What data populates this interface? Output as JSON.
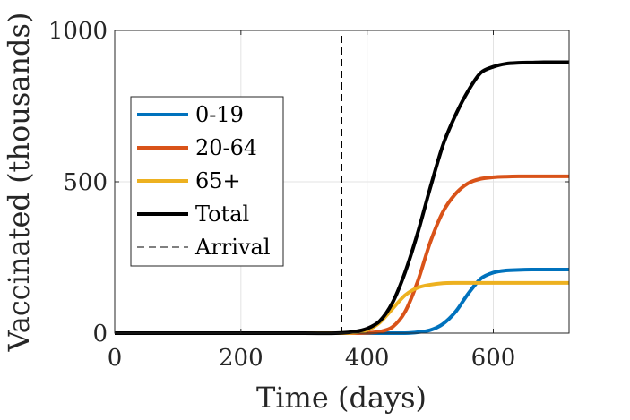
{
  "chart_data": {
    "type": "line",
    "xlabel": "Time (days)",
    "ylabel": "Vaccinated (thousands)",
    "xlim": [
      0,
      720
    ],
    "ylim": [
      0,
      1000
    ],
    "xticks": [
      0,
      200,
      400,
      600
    ],
    "yticks": [
      0,
      500,
      1000
    ],
    "grid": true,
    "legend_position": "center-left",
    "x": [
      0,
      100,
      200,
      300,
      350,
      380,
      400,
      420,
      440,
      460,
      480,
      500,
      520,
      540,
      560,
      580,
      600,
      620,
      640,
      660,
      680,
      700,
      720
    ],
    "series": [
      {
        "name": "0-19",
        "color": "#0072BD",
        "values": [
          0,
          0,
          0,
          0,
          0,
          0,
          0,
          0,
          0,
          0,
          3,
          10,
          30,
          70,
          130,
          180,
          200,
          207,
          209,
          210,
          210,
          210,
          210
        ]
      },
      {
        "name": "20-64",
        "color": "#D95319",
        "values": [
          0,
          0,
          0,
          0,
          0,
          0,
          1,
          5,
          20,
          70,
          170,
          300,
          400,
          460,
          495,
          510,
          515,
          517,
          518,
          518,
          518,
          518,
          518
        ]
      },
      {
        "name": "65+",
        "color": "#EDB120",
        "values": [
          0,
          0,
          0,
          0,
          0,
          2,
          10,
          35,
          80,
          125,
          150,
          160,
          165,
          166,
          166,
          166,
          166,
          166,
          166,
          166,
          166,
          166,
          166
        ]
      },
      {
        "name": "Total",
        "color": "#000000",
        "values": [
          0,
          0,
          0,
          0,
          0,
          5,
          15,
          40,
          100,
          200,
          330,
          480,
          620,
          720,
          800,
          860,
          880,
          890,
          893,
          894,
          895,
          895,
          895
        ]
      }
    ],
    "vlines": [
      {
        "name": "Arrival",
        "x": 360,
        "color": "#000000",
        "style": "dashed"
      }
    ]
  }
}
